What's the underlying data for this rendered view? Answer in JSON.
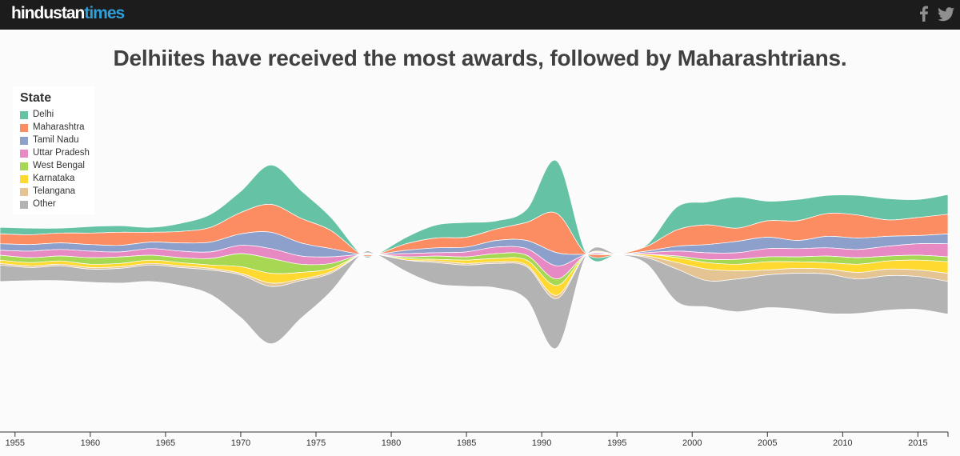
{
  "header": {
    "logo_part1": "hindustan",
    "logo_part2": "times",
    "social": [
      "facebook-icon",
      "twitter-icon"
    ]
  },
  "title": "Delhiites have received the most awards, followed by Maharashtrians.",
  "legend": {
    "title": "State",
    "items": [
      {
        "label": "Delhi",
        "color": "#66c2a5"
      },
      {
        "label": "Maharashtra",
        "color": "#fc8d62"
      },
      {
        "label": "Tamil Nadu",
        "color": "#8da0cb"
      },
      {
        "label": "Uttar Pradesh",
        "color": "#e78ac3"
      },
      {
        "label": "West Bengal",
        "color": "#a6d854"
      },
      {
        "label": "Karnataka",
        "color": "#ffd92f"
      },
      {
        "label": "Telangana",
        "color": "#e5c494"
      },
      {
        "label": "Other",
        "color": "#b3b3b3"
      }
    ]
  },
  "chart_data": {
    "type": "area",
    "subtype": "streamgraph",
    "title": "Delhiites have received the most awards, followed by Maharashtrians.",
    "xlabel": "",
    "ylabel": "",
    "xlim": [
      1954,
      2017
    ],
    "x_ticks": [
      1955,
      1960,
      1965,
      1970,
      1975,
      1980,
      1985,
      1990,
      1995,
      2000,
      2005,
      2010,
      2015
    ],
    "legend_position": "top-left",
    "x": [
      1954,
      1956,
      1958,
      1960,
      1962,
      1964,
      1966,
      1968,
      1970,
      1972,
      1974,
      1976,
      1978,
      1979,
      1981,
      1983,
      1985,
      1987,
      1989,
      1991,
      1993,
      1995,
      1997,
      1999,
      2001,
      2003,
      2005,
      2007,
      2009,
      2011,
      2013,
      2015,
      2017
    ],
    "series": [
      {
        "name": "Delhi",
        "values": [
          4,
          4,
          3,
          4,
          4,
          3,
          5,
          8,
          13,
          24,
          17,
          8,
          0,
          0,
          4,
          8,
          9,
          5,
          8,
          32,
          0,
          0,
          1,
          14,
          14,
          19,
          12,
          13,
          11,
          12,
          13,
          11,
          12
        ]
      },
      {
        "name": "Maharashtra",
        "values": [
          6,
          6,
          6,
          7,
          8,
          6,
          7,
          9,
          13,
          17,
          15,
          11,
          0,
          0,
          4,
          6,
          6,
          7,
          11,
          24,
          0,
          0,
          3,
          10,
          12,
          8,
          10,
          12,
          14,
          14,
          10,
          11,
          12
        ]
      },
      {
        "name": "Tamil Nadu",
        "values": [
          4,
          4,
          4,
          4,
          4,
          4,
          5,
          6,
          7,
          10,
          8,
          5,
          0,
          0,
          2,
          3,
          3,
          4,
          5,
          8,
          0,
          0,
          1,
          3,
          5,
          7,
          7,
          5,
          7,
          7,
          6,
          5,
          6
        ]
      },
      {
        "name": "Uttar Pradesh",
        "values": [
          3,
          4,
          4,
          4,
          3,
          4,
          4,
          4,
          5,
          6,
          5,
          4,
          0,
          0,
          2,
          2,
          3,
          4,
          4,
          8,
          0,
          0,
          1,
          3,
          4,
          4,
          5,
          5,
          5,
          5,
          6,
          7,
          8
        ]
      },
      {
        "name": "West Bengal",
        "values": [
          3,
          3,
          3,
          4,
          4,
          3,
          3,
          4,
          8,
          9,
          5,
          3,
          0,
          0,
          1,
          2,
          2,
          3,
          3,
          4,
          0,
          0,
          0,
          1,
          2,
          3,
          3,
          3,
          4,
          4,
          3,
          3,
          3
        ]
      },
      {
        "name": "Karnataka",
        "values": [
          2,
          2,
          2,
          2,
          2,
          2,
          2,
          2,
          4,
          6,
          4,
          2,
          0,
          0,
          1,
          1,
          2,
          2,
          3,
          6,
          0,
          0,
          1,
          3,
          4,
          4,
          5,
          4,
          4,
          5,
          5,
          6,
          7
        ]
      },
      {
        "name": "Telangana",
        "values": [
          1,
          1,
          1,
          1,
          1,
          1,
          1,
          1,
          1,
          2,
          1,
          1,
          0,
          0,
          0,
          1,
          1,
          1,
          1,
          2,
          0,
          0,
          1,
          4,
          7,
          5,
          3,
          3,
          3,
          4,
          4,
          4,
          5
        ]
      },
      {
        "name": "Other",
        "values": [
          10,
          8,
          9,
          8,
          9,
          10,
          11,
          15,
          26,
          35,
          23,
          11,
          0,
          0,
          7,
          13,
          13,
          15,
          20,
          30,
          0,
          0,
          4,
          20,
          16,
          20,
          20,
          22,
          24,
          21,
          21,
          20,
          20
        ]
      }
    ]
  }
}
